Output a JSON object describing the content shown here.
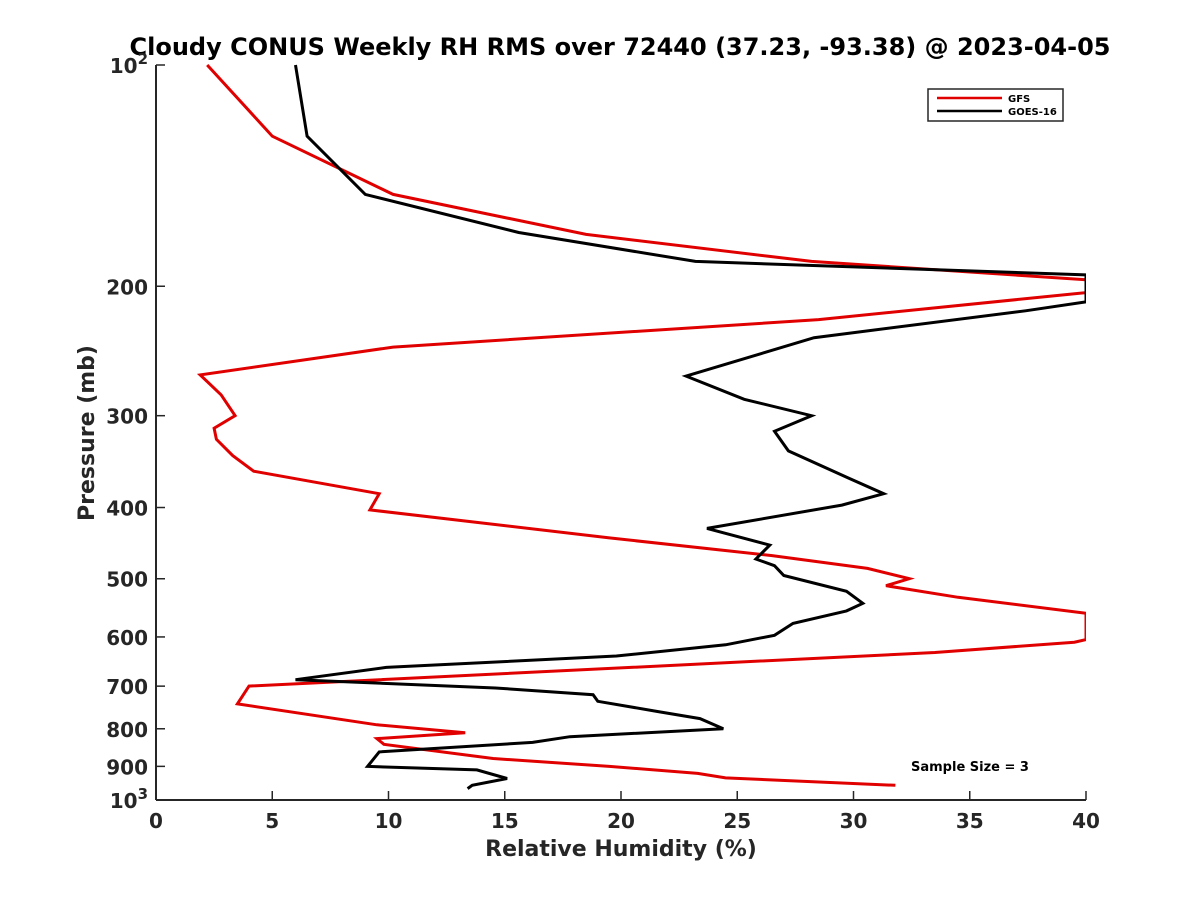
{
  "chart_data": {
    "type": "line",
    "title": "Cloudy CONUS Weekly RH RMS over 72440 (37.23, -93.38) @ 2023-04-05",
    "xlabel": "Relative Humidity (%)",
    "ylabel": "Pressure (mb)",
    "xlim": [
      0,
      40
    ],
    "ylim": [
      100,
      1000
    ],
    "y_scale": "log",
    "y_reversed": true,
    "grid": false,
    "legend_position": "top-right",
    "x_ticks": [
      0,
      5,
      10,
      15,
      20,
      25,
      30,
      35,
      40
    ],
    "x_tick_labels": [
      "0",
      "5",
      "10",
      "15",
      "20",
      "25",
      "30",
      "35",
      "40"
    ],
    "y_ticks": [
      100,
      200,
      300,
      400,
      500,
      600,
      700,
      800,
      900,
      1000
    ],
    "y_tick_labels": [
      {
        "base": "10",
        "exp": "2"
      },
      {
        "base": "200"
      },
      {
        "base": "300"
      },
      {
        "base": "400"
      },
      {
        "base": "500"
      },
      {
        "base": "600"
      },
      {
        "base": "700"
      },
      {
        "base": "800"
      },
      {
        "base": "900"
      },
      {
        "base": "10",
        "exp": "3"
      }
    ],
    "annotation": "Sample Size = 3",
    "series": [
      {
        "name": "GFS",
        "color": "#e00000",
        "points": [
          [
            2.2,
            100
          ],
          [
            5.0,
            125
          ],
          [
            10.2,
            150
          ],
          [
            18.5,
            170
          ],
          [
            28.2,
            185
          ],
          [
            40.0,
            196
          ],
          [
            40.0,
            204
          ],
          [
            28.5,
            222
          ],
          [
            10.2,
            242
          ],
          [
            1.9,
            264
          ],
          [
            2.8,
            281
          ],
          [
            3.4,
            300
          ],
          [
            2.5,
            312
          ],
          [
            2.6,
            323
          ],
          [
            3.3,
            340
          ],
          [
            4.2,
            357
          ],
          [
            9.6,
            383
          ],
          [
            9.2,
            403
          ],
          [
            19.5,
            440
          ],
          [
            26.5,
            465
          ],
          [
            30.6,
            484
          ],
          [
            32.4,
            500
          ],
          [
            31.4,
            511
          ],
          [
            34.5,
            530
          ],
          [
            40.0,
            557
          ],
          [
            40.0,
            605
          ],
          [
            39.5,
            610
          ],
          [
            33.5,
            630
          ],
          [
            4.0,
            700
          ],
          [
            3.5,
            740
          ],
          [
            9.5,
            790
          ],
          [
            13.3,
            810
          ],
          [
            9.5,
            825
          ],
          [
            9.8,
            840
          ],
          [
            14.5,
            878
          ],
          [
            19.5,
            900
          ],
          [
            23.3,
            920
          ],
          [
            24.5,
            933
          ],
          [
            31.8,
            955
          ]
        ]
      },
      {
        "name": "GOES-16",
        "color": "#000000",
        "points": [
          [
            6.0,
            100
          ],
          [
            6.5,
            125
          ],
          [
            9.0,
            150
          ],
          [
            15.6,
            169
          ],
          [
            23.2,
            185
          ],
          [
            40.0,
            193
          ],
          [
            40.0,
            210
          ],
          [
            37.4,
            216
          ],
          [
            28.3,
            235
          ],
          [
            22.8,
            265
          ],
          [
            25.3,
            285
          ],
          [
            28.2,
            300
          ],
          [
            26.6,
            315
          ],
          [
            27.2,
            335
          ],
          [
            29.8,
            365
          ],
          [
            31.3,
            383
          ],
          [
            29.5,
            397
          ],
          [
            23.7,
            427
          ],
          [
            26.4,
            450
          ],
          [
            25.8,
            470
          ],
          [
            26.6,
            480
          ],
          [
            27.0,
            495
          ],
          [
            29.7,
            520
          ],
          [
            30.4,
            540
          ],
          [
            29.7,
            553
          ],
          [
            27.4,
            575
          ],
          [
            26.6,
            597
          ],
          [
            24.5,
            615
          ],
          [
            19.8,
            637
          ],
          [
            9.9,
            660
          ],
          [
            6.0,
            686
          ],
          [
            14.6,
            704
          ],
          [
            18.8,
            719
          ],
          [
            19.0,
            734
          ],
          [
            21.6,
            758
          ],
          [
            23.4,
            775
          ],
          [
            24.4,
            800
          ],
          [
            17.8,
            820
          ],
          [
            16.2,
            835
          ],
          [
            9.6,
            860
          ],
          [
            9.1,
            900
          ],
          [
            13.8,
            910
          ],
          [
            15.1,
            935
          ],
          [
            13.6,
            955
          ],
          [
            13.4,
            965
          ]
        ]
      }
    ]
  }
}
